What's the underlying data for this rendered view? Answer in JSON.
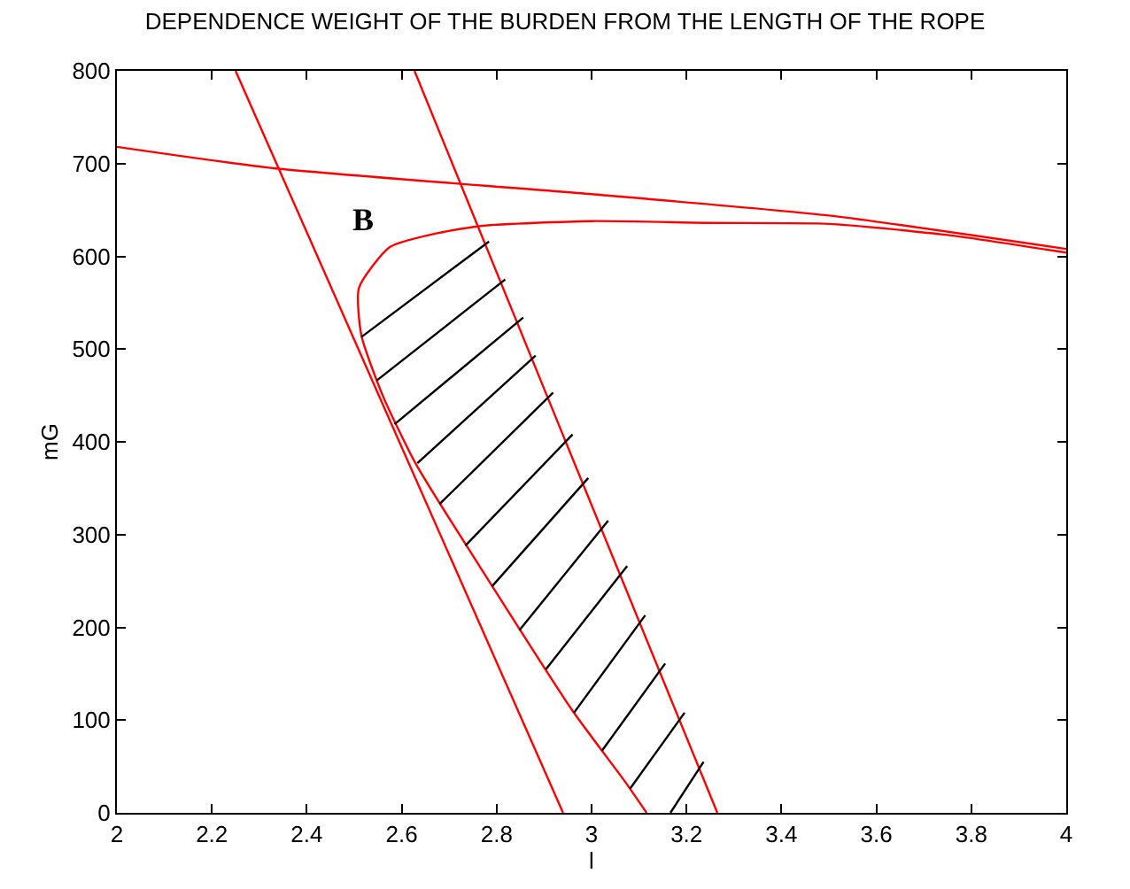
{
  "chart_data": {
    "type": "line",
    "title": "DEPENDENCE WEIGHT OF THE BURDEN FROM THE LENGTH OF THE ROPE",
    "xlabel": "l",
    "ylabel": "mG",
    "xlim": [
      2,
      4
    ],
    "ylim": [
      0,
      800
    ],
    "xticks": [
      2,
      2.2,
      2.4,
      2.6,
      2.8,
      3,
      3.2,
      3.4,
      3.6,
      3.8,
      4
    ],
    "yticks": [
      0,
      100,
      200,
      300,
      400,
      500,
      600,
      700,
      800
    ],
    "marker": "none",
    "line_style": "solid",
    "annotations": [
      "B"
    ],
    "series": [
      {
        "color": "#ff0000",
        "x": [
          2.25,
          2.94
        ],
        "values": [
          800,
          0
        ]
      },
      {
        "color": "#ff0000",
        "x": [
          2.627,
          2.94,
          3.265
        ],
        "values": [
          800,
          407,
          0
        ]
      },
      {
        "color": "#ff0000",
        "x": [
          2,
          2.33,
          3,
          3.5,
          4
        ],
        "values": [
          718,
          695,
          667,
          644,
          608
        ]
      },
      {
        "color": "#ff0000",
        "x": [
          3.116,
          3.07,
          2.96,
          2.79,
          2.63,
          2.56,
          2.515,
          2.51,
          2.575,
          2.675,
          2.77,
          3,
          3.25,
          3.5,
          3.75,
          4
        ],
        "values": [
          0,
          34,
          110,
          245,
          376,
          450,
          515,
          566,
          610,
          625,
          633,
          638,
          636,
          635,
          623,
          604
        ]
      },
      {
        "color": "#000000",
        "x": [
          2.515,
          2.784,
          null,
          2.547,
          2.818,
          null,
          2.585,
          2.856,
          null,
          2.633,
          2.882,
          null,
          2.68,
          2.919,
          null,
          2.734,
          2.96,
          null,
          2.79,
          2.993,
          null,
          2.848,
          3.035,
          null,
          2.904,
          3.075,
          null,
          2.963,
          3.113,
          null,
          3.022,
          3.155,
          null,
          3.081,
          3.196,
          null,
          3.166,
          3.236
        ],
        "values": [
          513,
          616,
          null,
          466,
          575,
          null,
          419,
          534,
          null,
          377,
          493,
          null,
          333,
          453,
          null,
          288,
          408,
          null,
          244,
          361,
          null,
          197,
          315,
          null,
          155,
          266,
          null,
          108,
          213,
          null,
          67,
          161,
          null,
          26,
          108,
          null,
          0,
          55
        ]
      }
    ]
  }
}
